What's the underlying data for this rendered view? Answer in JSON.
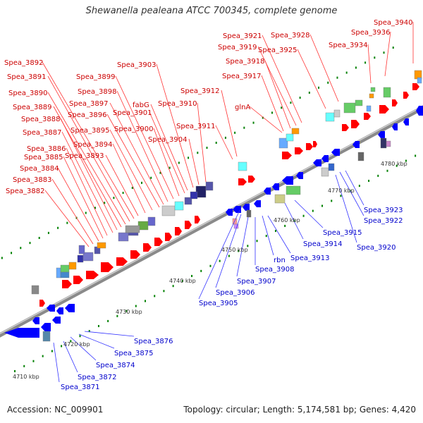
{
  "title": "Shewanella pealeana ATCC 700345, complete genome",
  "footer": {
    "accession": "Accession: NC_009901",
    "summary": "Topology: circular; Length: 5,174,581 bp; Genes: 4,420"
  },
  "colors": {
    "forward_strand": "#ff0000",
    "reverse_strand": "#0000ff",
    "forward_label": "#cc0000",
    "reverse_label": "#0000cc",
    "backbone": "#888888",
    "tick": "#008000"
  },
  "ticks": [
    "4710 kbp",
    "4720 kbp",
    "4730 kbp",
    "4740 kbp",
    "4750 kbp",
    "4760 kbp",
    "4770 kbp",
    "4780 kbp"
  ],
  "forward_labels": [
    "Spea_3882",
    "Spea_3883",
    "Spea_3884",
    "Spea_3885",
    "Spea_3886",
    "Spea_3887",
    "Spea_3888",
    "Spea_3889",
    "Spea_3890",
    "Spea_3891",
    "Spea_3892",
    "Spea_3893",
    "Spea_3894",
    "Spea_3895",
    "Spea_3896",
    "Spea_3897",
    "Spea_3898",
    "Spea_3899",
    "Spea_3900",
    "Spea_3901",
    "fabG",
    "Spea_3903",
    "Spea_3904",
    "Spea_3910",
    "Spea_3911",
    "Spea_3912",
    "glnA",
    "Spea_3917",
    "Spea_3918",
    "Spea_3919",
    "Spea_3921",
    "Spea_3925",
    "Spea_3928",
    "Spea_3934",
    "Spea_3936",
    "Spea_3940"
  ],
  "reverse_labels": [
    "Spea_3871",
    "Spea_3872",
    "Spea_3874",
    "Spea_3875",
    "Spea_3876",
    "Spea_3905",
    "Spea_3906",
    "Spea_3907",
    "Spea_3908",
    "rbn",
    "Spea_3913",
    "Spea_3914",
    "Spea_3915",
    "Spea_3920",
    "Spea_3922",
    "Spea_3923"
  ]
}
